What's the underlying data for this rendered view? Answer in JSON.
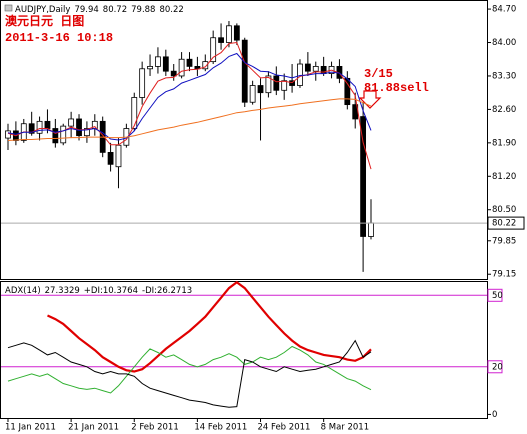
{
  "chart_data": [
    {
      "type": "candlestick",
      "title": "AUDJPY,Daily",
      "categories": [
        "11 Jan 2011",
        null,
        null,
        null,
        null,
        null,
        null,
        null,
        "21 Jan 2011",
        null,
        null,
        null,
        null,
        null,
        null,
        null,
        "2 Feb 2011",
        null,
        null,
        null,
        null,
        null,
        null,
        null,
        "14 Feb 2011",
        null,
        null,
        null,
        null,
        null,
        null,
        null,
        "24 Feb 2011",
        null,
        null,
        null,
        null,
        null,
        null,
        null,
        "8 Mar 2011",
        null,
        null,
        null,
        null,
        null,
        null
      ],
      "open": [
        82.0,
        82.15,
        81.95,
        82.3,
        82.1,
        82.35,
        82.2,
        81.9,
        82.25,
        82.4,
        82.05,
        82.2,
        82.35,
        81.7,
        81.4,
        81.85,
        82.2,
        82.85,
        83.45,
        83.5,
        83.7,
        83.4,
        83.3,
        83.65,
        83.5,
        83.45,
        83.6,
        84.1,
        84.0,
        84.35,
        84.05,
        82.75,
        83.1,
        82.95,
        83.3,
        83.0,
        83.2,
        83.1,
        83.55,
        83.4,
        83.5,
        83.35,
        83.5,
        83.25,
        82.7,
        82.45,
        79.94
      ],
      "high": [
        82.3,
        82.35,
        82.4,
        82.55,
        82.45,
        82.6,
        82.4,
        82.3,
        82.55,
        82.5,
        82.35,
        82.5,
        82.45,
        81.9,
        82.0,
        82.3,
        82.95,
        83.6,
        83.75,
        83.9,
        83.85,
        83.55,
        83.8,
        83.8,
        83.7,
        83.75,
        84.25,
        84.4,
        84.45,
        84.4,
        84.1,
        83.2,
        83.25,
        83.4,
        83.5,
        83.35,
        83.55,
        83.65,
        83.8,
        83.6,
        83.7,
        83.6,
        83.65,
        83.4,
        82.95,
        82.75,
        80.72
      ],
      "low": [
        81.75,
        81.85,
        81.9,
        82.05,
        81.95,
        82.1,
        81.8,
        81.85,
        82.0,
        81.95,
        81.9,
        82.05,
        81.6,
        81.3,
        80.95,
        81.8,
        82.15,
        82.7,
        83.3,
        83.35,
        83.3,
        83.2,
        83.25,
        83.4,
        83.3,
        83.4,
        83.55,
        83.85,
        83.9,
        83.95,
        82.65,
        82.7,
        81.95,
        82.85,
        82.9,
        82.8,
        82.95,
        83.05,
        83.3,
        83.2,
        83.3,
        83.25,
        83.15,
        82.6,
        82.2,
        79.2,
        79.88
      ],
      "close": [
        82.15,
        81.95,
        82.3,
        82.1,
        82.35,
        82.2,
        81.9,
        82.25,
        82.4,
        82.05,
        82.2,
        82.35,
        81.7,
        81.45,
        81.85,
        82.2,
        82.85,
        83.45,
        83.5,
        83.7,
        83.4,
        83.3,
        83.65,
        83.5,
        83.45,
        83.6,
        84.1,
        84.0,
        84.35,
        84.05,
        82.75,
        83.1,
        82.95,
        83.3,
        83.0,
        83.2,
        83.1,
        83.55,
        83.4,
        83.5,
        83.35,
        83.5,
        83.25,
        82.7,
        82.4,
        79.94,
        80.22
      ],
      "up_color": "#ffffff",
      "down_color": "#000000",
      "series": [
        {
          "color": "#e02020",
          "values": [
            82.1,
            82.05,
            82.13,
            82.12,
            82.2,
            82.2,
            82.1,
            82.15,
            82.23,
            82.17,
            82.18,
            82.24,
            82.06,
            81.86,
            81.86,
            81.97,
            82.26,
            82.66,
            82.94,
            83.19,
            83.26,
            83.27,
            83.4,
            83.43,
            83.44,
            83.49,
            83.69,
            83.79,
            83.98,
            84.0,
            83.58,
            83.42,
            83.26,
            83.27,
            83.18,
            83.19,
            83.16,
            83.29,
            83.33,
            83.39,
            83.38,
            83.42,
            83.36,
            83.14,
            82.89,
            81.91,
            81.35
          ]
        },
        {
          "color": "#1010c0",
          "values": [
            82.11,
            82.08,
            82.12,
            82.12,
            82.16,
            82.17,
            82.12,
            82.15,
            82.2,
            82.16,
            82.17,
            82.2,
            82.11,
            81.98,
            81.96,
            82.0,
            82.15,
            82.41,
            82.63,
            82.85,
            82.97,
            83.03,
            83.15,
            83.21,
            83.27,
            83.33,
            83.47,
            83.57,
            83.71,
            83.77,
            83.58,
            83.5,
            83.4,
            83.39,
            83.32,
            83.3,
            83.26,
            83.31,
            83.32,
            83.35,
            83.35,
            83.38,
            83.36,
            83.24,
            83.08,
            82.57,
            82.16
          ]
        },
        {
          "color": "#f07020",
          "values": [
            81.95,
            81.96,
            81.97,
            81.97,
            81.98,
            81.99,
            81.99,
            82.0,
            82.01,
            82.01,
            82.02,
            82.02,
            82.02,
            82.01,
            82.01,
            82.02,
            82.05,
            82.09,
            82.13,
            82.17,
            82.2,
            82.23,
            82.27,
            82.3,
            82.33,
            82.37,
            82.41,
            82.45,
            82.49,
            82.53,
            82.55,
            82.58,
            82.6,
            82.63,
            82.65,
            82.67,
            82.69,
            82.72,
            82.74,
            82.76,
            82.78,
            82.8,
            82.82,
            82.82,
            82.81,
            82.74,
            82.67
          ]
        }
      ],
      "ylim": [
        79.05,
        84.89
      ],
      "yticks": [
        {
          "value": 84.7,
          "label": "84.70"
        },
        {
          "value": 84.0,
          "label": "84.00"
        },
        {
          "value": 83.3,
          "label": "83.30"
        },
        {
          "value": 82.6,
          "label": "82.60"
        },
        {
          "value": 81.9,
          "label": "81.90"
        },
        {
          "value": 81.2,
          "label": "81.20"
        },
        {
          "value": 80.5,
          "label": "80.50"
        },
        79.85,
        79.15
      ],
      "annotations": [
        "澳元日元 日图",
        "2011-3-16 10:18",
        "3/15",
        "81.88sell"
      ],
      "annotation_color": "#e00000"
    },
    {
      "type": "line",
      "series": [
        {
          "name": "ADX(14)",
          "color": "#e00000",
          "values": [
            null,
            null,
            null,
            null,
            null,
            41.5,
            40,
            38,
            35,
            32,
            29.5,
            27,
            24,
            22,
            20,
            18.5,
            18,
            19,
            21.5,
            24.5,
            27.5,
            30,
            32.5,
            35,
            38,
            41,
            45,
            49,
            53,
            55.5,
            53,
            49,
            45,
            41,
            37.5,
            34,
            31,
            28.5,
            27,
            26,
            25,
            24.5,
            24,
            23,
            22.5,
            24,
            27.3329
          ]
        },
        {
          "name": "+DI:",
          "color": "#30b030",
          "values": [
            14,
            15,
            16,
            17,
            16,
            17,
            15,
            13,
            12,
            11,
            10.5,
            11,
            10,
            9,
            12,
            16,
            20,
            24,
            27.5,
            26,
            24,
            25,
            23,
            21,
            20,
            21,
            23,
            24,
            25.5,
            24,
            21,
            22,
            24,
            23,
            24,
            26,
            28.5,
            27,
            25,
            22,
            21,
            19,
            17,
            15,
            14,
            12,
            10.3764
          ]
        },
        {
          "name": "-DI:",
          "color": "#000000",
          "values": [
            28,
            29,
            30,
            29,
            27,
            25,
            26,
            24,
            22,
            21,
            20,
            18,
            17,
            18,
            17,
            17,
            16,
            13,
            11,
            10,
            9,
            8,
            7,
            6,
            5.5,
            5,
            4,
            3.5,
            3,
            3.3,
            23,
            22,
            20,
            19,
            18,
            20,
            19,
            18,
            18.5,
            19,
            20,
            21,
            22,
            26,
            31,
            24,
            26.2713
          ]
        }
      ],
      "ylim": [
        -1.5,
        56
      ],
      "yticks": [
        50,
        20,
        0
      ],
      "levels": [
        50,
        20
      ],
      "level_color": "#d020d0"
    }
  ]
}
